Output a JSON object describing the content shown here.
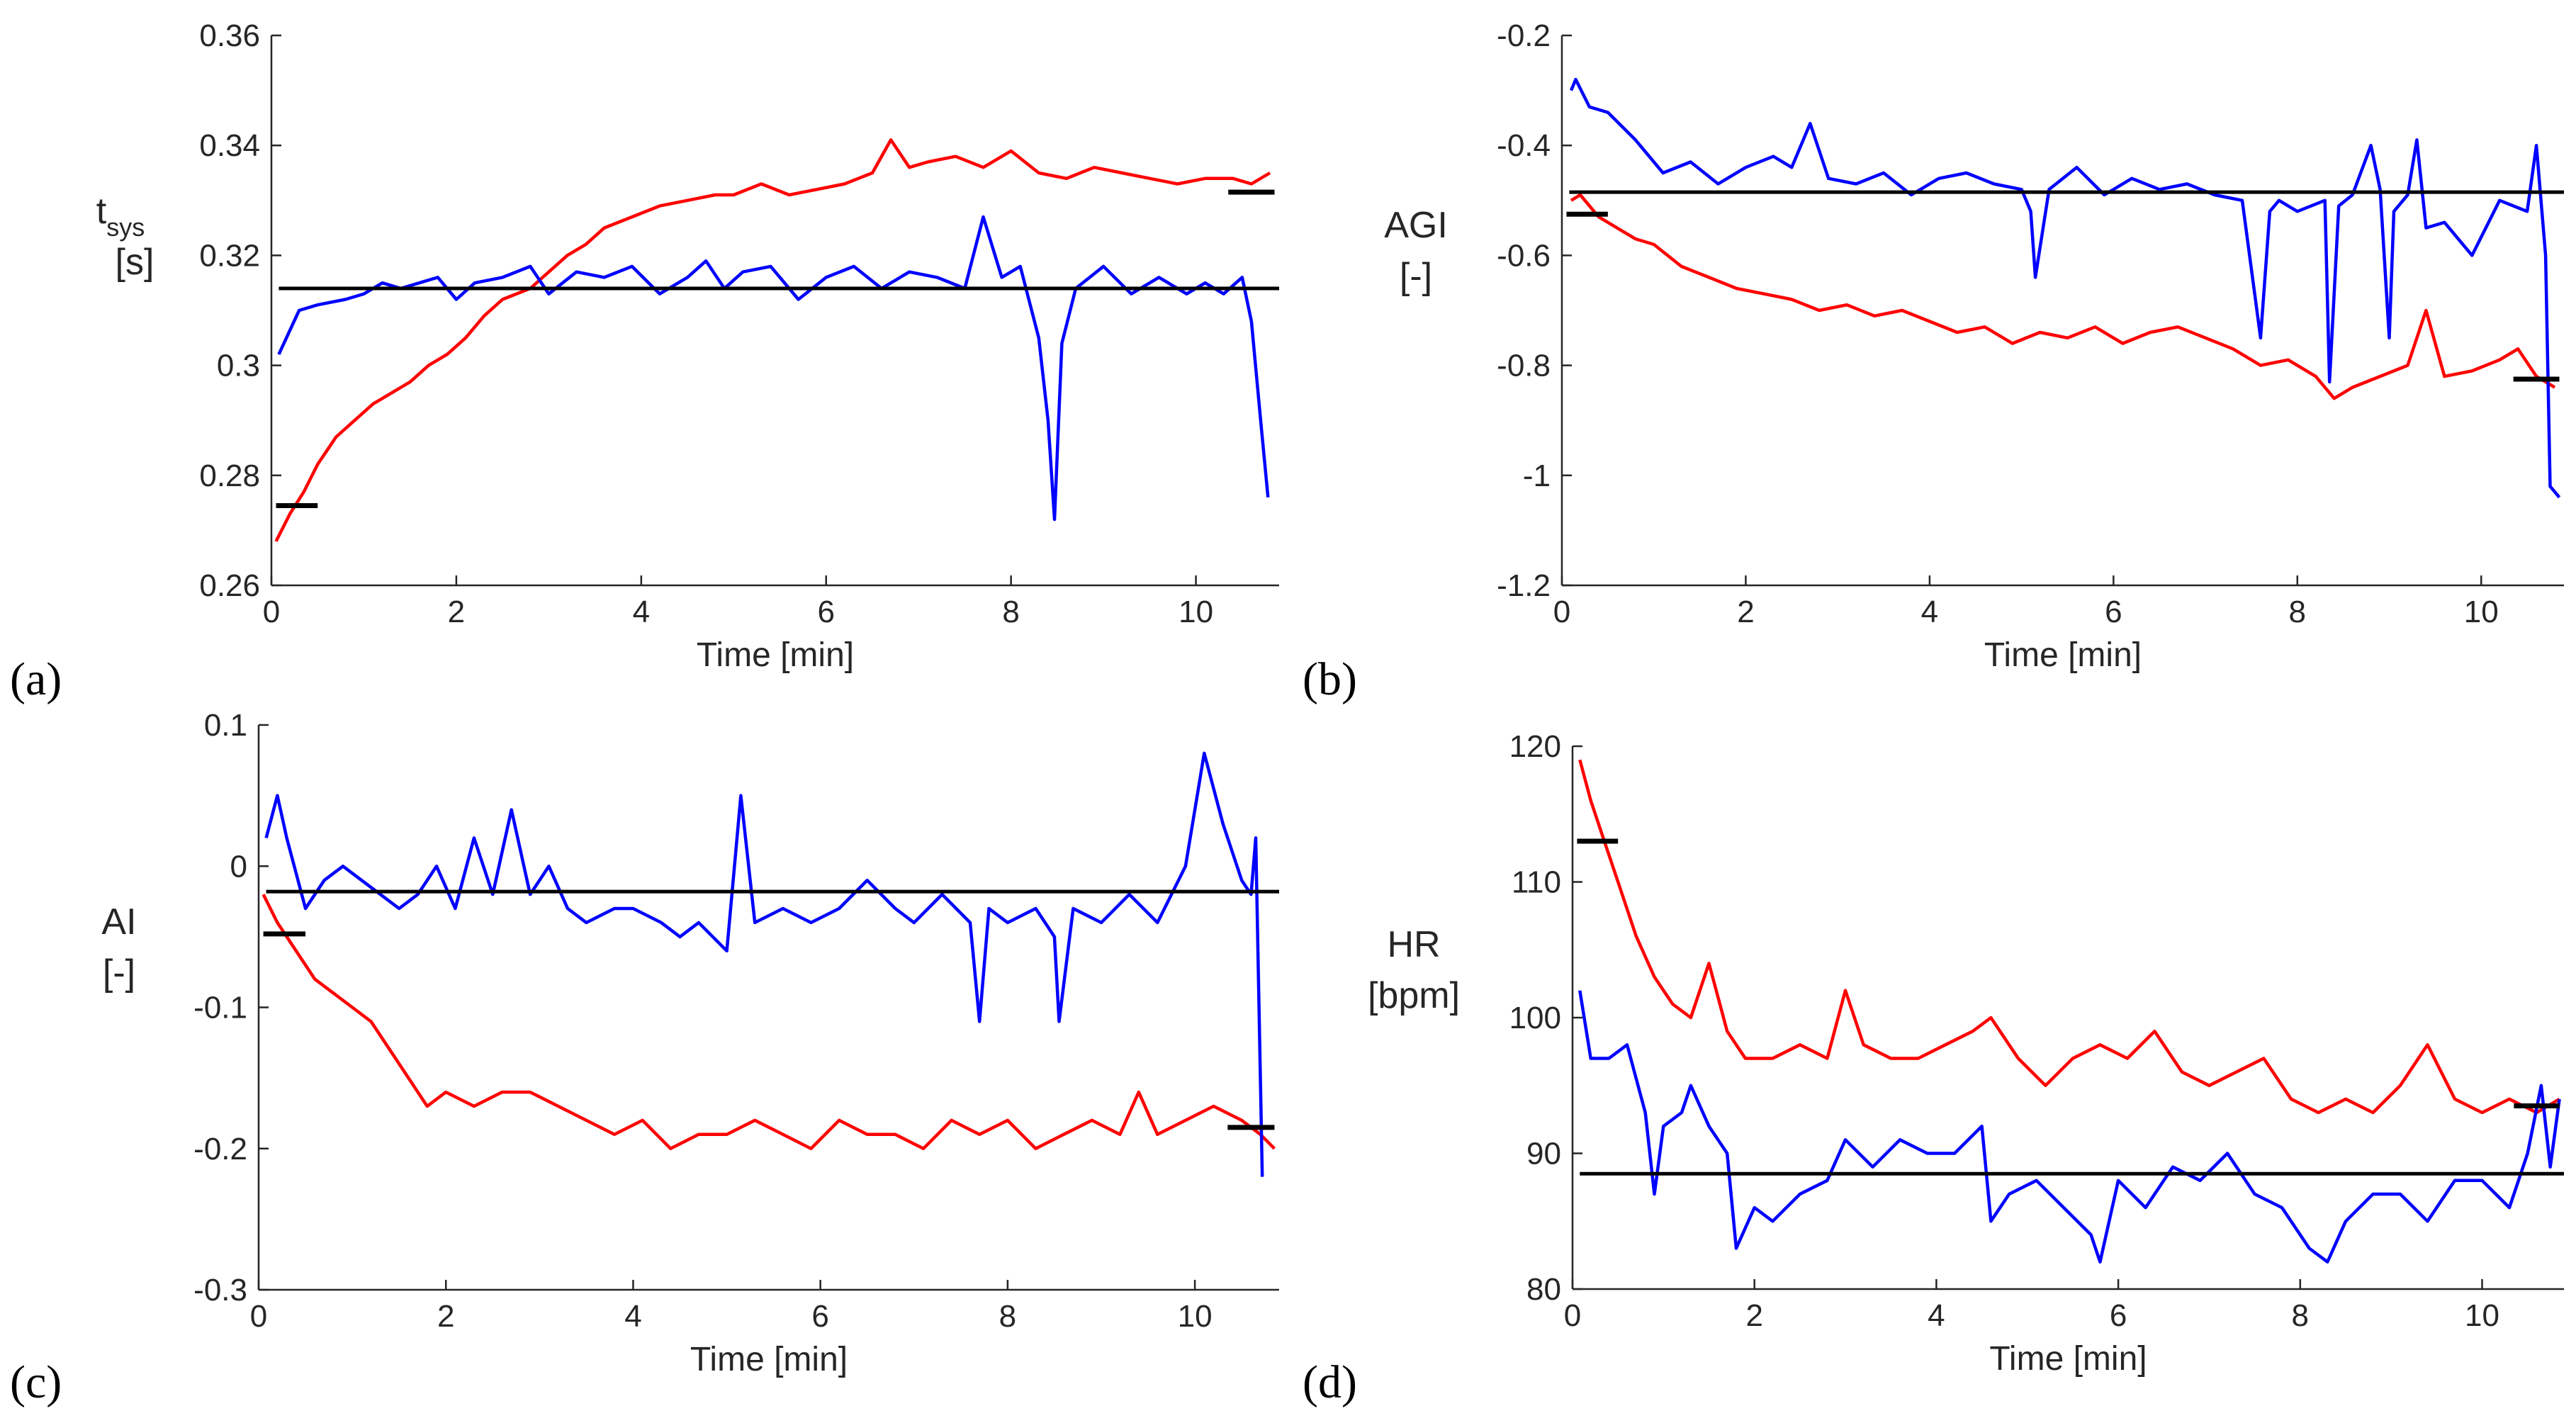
{
  "colors": {
    "red": "#ff0000",
    "blue": "#0000ff",
    "black": "#000000",
    "axis": "#262626"
  },
  "chart_data": [
    {
      "type": "line",
      "panel_label": "(a)",
      "xlabel": "Time [min]",
      "ylabel_lines": [
        "t",
        "[s]"
      ],
      "ylabel_sub": "sys",
      "xlim": [
        0,
        10.9
      ],
      "ylim": [
        0.26,
        0.36
      ],
      "xticks": [
        0,
        2,
        4,
        6,
        8,
        10
      ],
      "yticks": [
        0.26,
        0.28,
        0.3,
        0.32,
        0.34,
        0.36
      ],
      "ytick_labels": [
        "0.26",
        "0.28",
        "0.3",
        "0.32",
        "0.34",
        "0.36"
      ],
      "reference_lines": [
        {
          "name": "blue-mean",
          "y": 0.314,
          "x_start": 0.08,
          "x_end": 10.9
        },
        {
          "name": "red-start",
          "y": 0.2745,
          "x_start": 0.05,
          "x_end": 0.5
        },
        {
          "name": "red-end",
          "y": 0.3315,
          "x_start": 10.35,
          "x_end": 10.85
        }
      ],
      "series": [
        {
          "name": "red",
          "color": "red",
          "x": [
            0.05,
            0.2,
            0.35,
            0.5,
            0.7,
            0.9,
            1.1,
            1.3,
            1.5,
            1.7,
            1.9,
            2.1,
            2.3,
            2.5,
            2.8,
            3.0,
            3.2,
            3.4,
            3.6,
            3.9,
            4.2,
            4.5,
            4.8,
            5.0,
            5.3,
            5.6,
            5.9,
            6.2,
            6.5,
            6.7,
            6.9,
            7.1,
            7.4,
            7.7,
            8.0,
            8.3,
            8.6,
            8.9,
            9.2,
            9.5,
            9.8,
            10.1,
            10.4,
            10.6,
            10.8
          ],
          "y": [
            0.268,
            0.273,
            0.277,
            0.282,
            0.287,
            0.29,
            0.293,
            0.295,
            0.297,
            0.3,
            0.302,
            0.305,
            0.309,
            0.312,
            0.314,
            0.317,
            0.32,
            0.322,
            0.325,
            0.327,
            0.329,
            0.33,
            0.331,
            0.331,
            0.333,
            0.331,
            0.332,
            0.333,
            0.335,
            0.341,
            0.336,
            0.337,
            0.338,
            0.336,
            0.339,
            0.335,
            0.334,
            0.336,
            0.335,
            0.334,
            0.333,
            0.334,
            0.334,
            0.333,
            0.335
          ]
        },
        {
          "name": "blue",
          "color": "blue",
          "x": [
            0.08,
            0.3,
            0.5,
            0.8,
            1.0,
            1.2,
            1.4,
            1.6,
            1.8,
            2.0,
            2.2,
            2.5,
            2.8,
            3.0,
            3.3,
            3.6,
            3.9,
            4.2,
            4.5,
            4.7,
            4.9,
            5.1,
            5.4,
            5.7,
            6.0,
            6.3,
            6.6,
            6.9,
            7.2,
            7.5,
            7.7,
            7.9,
            8.1,
            8.3,
            8.4,
            8.47,
            8.55,
            8.7,
            9.0,
            9.3,
            9.6,
            9.9,
            10.1,
            10.3,
            10.5,
            10.6,
            10.7,
            10.78
          ],
          "y": [
            0.302,
            0.31,
            0.311,
            0.312,
            0.313,
            0.315,
            0.314,
            0.315,
            0.316,
            0.312,
            0.315,
            0.316,
            0.318,
            0.313,
            0.317,
            0.316,
            0.318,
            0.313,
            0.316,
            0.319,
            0.314,
            0.317,
            0.318,
            0.312,
            0.316,
            0.318,
            0.314,
            0.317,
            0.316,
            0.314,
            0.327,
            0.316,
            0.318,
            0.305,
            0.29,
            0.272,
            0.304,
            0.314,
            0.318,
            0.313,
            0.316,
            0.313,
            0.315,
            0.313,
            0.316,
            0.308,
            0.29,
            0.276
          ]
        }
      ]
    },
    {
      "type": "line",
      "panel_label": "(b)",
      "xlabel": "Time [min]",
      "ylabel_lines": [
        "AGI",
        "[-]"
      ],
      "xlim": [
        0,
        10.9
      ],
      "ylim": [
        -1.2,
        -0.2
      ],
      "xticks": [
        0,
        2,
        4,
        6,
        8,
        10
      ],
      "yticks": [
        -1.2,
        -1,
        -0.8,
        -0.6,
        -0.4,
        -0.2
      ],
      "ytick_labels": [
        "-1.2",
        "-1",
        "-0.8",
        "-0.6",
        "-0.4",
        "-0.2"
      ],
      "reference_lines": [
        {
          "name": "blue-mean",
          "y": -0.485,
          "x_start": 0.08,
          "x_end": 10.9
        },
        {
          "name": "red-start",
          "y": -0.525,
          "x_start": 0.05,
          "x_end": 0.5
        },
        {
          "name": "red-end",
          "y": -0.825,
          "x_start": 10.35,
          "x_end": 10.85
        }
      ],
      "series": [
        {
          "name": "red",
          "color": "red",
          "x": [
            0.1,
            0.2,
            0.4,
            0.6,
            0.8,
            1.0,
            1.3,
            1.6,
            1.9,
            2.2,
            2.5,
            2.8,
            3.1,
            3.4,
            3.7,
            4.0,
            4.3,
            4.6,
            4.9,
            5.2,
            5.5,
            5.8,
            6.1,
            6.4,
            6.7,
            7.0,
            7.3,
            7.6,
            7.9,
            8.2,
            8.4,
            8.6,
            8.9,
            9.2,
            9.4,
            9.6,
            9.9,
            10.2,
            10.4,
            10.6,
            10.8
          ],
          "y": [
            -0.5,
            -0.49,
            -0.53,
            -0.55,
            -0.57,
            -0.58,
            -0.62,
            -0.64,
            -0.66,
            -0.67,
            -0.68,
            -0.7,
            -0.69,
            -0.71,
            -0.7,
            -0.72,
            -0.74,
            -0.73,
            -0.76,
            -0.74,
            -0.75,
            -0.73,
            -0.76,
            -0.74,
            -0.73,
            -0.75,
            -0.77,
            -0.8,
            -0.79,
            -0.82,
            -0.86,
            -0.84,
            -0.82,
            -0.8,
            -0.7,
            -0.82,
            -0.81,
            -0.79,
            -0.77,
            -0.82,
            -0.84
          ]
        },
        {
          "name": "blue",
          "color": "blue",
          "x": [
            0.1,
            0.15,
            0.3,
            0.5,
            0.8,
            1.1,
            1.4,
            1.7,
            2.0,
            2.3,
            2.5,
            2.7,
            2.9,
            3.2,
            3.5,
            3.8,
            4.1,
            4.4,
            4.7,
            5.0,
            5.1,
            5.15,
            5.3,
            5.6,
            5.9,
            6.2,
            6.5,
            6.8,
            7.1,
            7.4,
            7.6,
            7.7,
            7.8,
            8.0,
            8.3,
            8.35,
            8.45,
            8.6,
            8.8,
            8.9,
            9.0,
            9.05,
            9.2,
            9.3,
            9.4,
            9.6,
            9.9,
            10.2,
            10.5,
            10.6,
            10.7,
            10.75,
            10.85
          ],
          "y": [
            -0.3,
            -0.28,
            -0.33,
            -0.34,
            -0.39,
            -0.45,
            -0.43,
            -0.47,
            -0.44,
            -0.42,
            -0.44,
            -0.36,
            -0.46,
            -0.47,
            -0.45,
            -0.49,
            -0.46,
            -0.45,
            -0.47,
            -0.48,
            -0.52,
            -0.64,
            -0.48,
            -0.44,
            -0.49,
            -0.46,
            -0.48,
            -0.47,
            -0.49,
            -0.5,
            -0.75,
            -0.52,
            -0.5,
            -0.52,
            -0.5,
            -0.83,
            -0.51,
            -0.49,
            -0.4,
            -0.48,
            -0.75,
            -0.52,
            -0.49,
            -0.39,
            -0.55,
            -0.54,
            -0.6,
            -0.5,
            -0.52,
            -0.4,
            -0.6,
            -1.02,
            -1.04
          ]
        }
      ]
    },
    {
      "type": "line",
      "panel_label": "(c)",
      "xlabel": "Time [min]",
      "ylabel_lines": [
        "AI",
        "[-]"
      ],
      "xlim": [
        0,
        10.9
      ],
      "ylim": [
        -0.3,
        0.1
      ],
      "xticks": [
        0,
        2,
        4,
        6,
        8,
        10
      ],
      "yticks": [
        -0.3,
        -0.2,
        -0.1,
        0,
        0.1
      ],
      "ytick_labels": [
        "-0.3",
        "-0.2",
        "-0.1",
        "0",
        "0.1"
      ],
      "reference_lines": [
        {
          "name": "blue-mean",
          "y": -0.018,
          "x_start": 0.08,
          "x_end": 10.9
        },
        {
          "name": "red-start",
          "y": -0.048,
          "x_start": 0.05,
          "x_end": 0.5
        },
        {
          "name": "red-end",
          "y": -0.185,
          "x_start": 10.35,
          "x_end": 10.85
        }
      ],
      "series": [
        {
          "name": "red",
          "color": "red",
          "x": [
            0.05,
            0.2,
            0.4,
            0.6,
            0.8,
            1.0,
            1.2,
            1.4,
            1.6,
            1.8,
            2.0,
            2.3,
            2.6,
            2.9,
            3.2,
            3.5,
            3.8,
            4.1,
            4.4,
            4.7,
            5.0,
            5.3,
            5.6,
            5.9,
            6.2,
            6.5,
            6.8,
            7.1,
            7.4,
            7.7,
            8.0,
            8.3,
            8.6,
            8.9,
            9.2,
            9.4,
            9.6,
            9.9,
            10.2,
            10.5,
            10.7,
            10.85
          ],
          "y": [
            -0.02,
            -0.04,
            -0.06,
            -0.08,
            -0.09,
            -0.1,
            -0.11,
            -0.13,
            -0.15,
            -0.17,
            -0.16,
            -0.17,
            -0.16,
            -0.16,
            -0.17,
            -0.18,
            -0.19,
            -0.18,
            -0.2,
            -0.19,
            -0.19,
            -0.18,
            -0.19,
            -0.2,
            -0.18,
            -0.19,
            -0.19,
            -0.2,
            -0.18,
            -0.19,
            -0.18,
            -0.2,
            -0.19,
            -0.18,
            -0.19,
            -0.16,
            -0.19,
            -0.18,
            -0.17,
            -0.18,
            -0.19,
            -0.2
          ]
        },
        {
          "name": "blue",
          "color": "blue",
          "x": [
            0.08,
            0.2,
            0.3,
            0.5,
            0.7,
            0.9,
            1.1,
            1.3,
            1.5,
            1.7,
            1.9,
            2.1,
            2.3,
            2.5,
            2.7,
            2.9,
            3.1,
            3.3,
            3.5,
            3.8,
            4.0,
            4.3,
            4.5,
            4.7,
            5.0,
            5.15,
            5.3,
            5.6,
            5.9,
            6.2,
            6.5,
            6.8,
            7.0,
            7.3,
            7.6,
            7.7,
            7.8,
            8.0,
            8.3,
            8.5,
            8.55,
            8.7,
            9.0,
            9.3,
            9.6,
            9.9,
            10.1,
            10.3,
            10.5,
            10.6,
            10.65,
            10.72
          ],
          "y": [
            0.02,
            0.05,
            0.02,
            -0.03,
            -0.01,
            0.0,
            -0.01,
            -0.02,
            -0.03,
            -0.02,
            0.0,
            -0.03,
            0.02,
            -0.02,
            0.04,
            -0.02,
            0.0,
            -0.03,
            -0.04,
            -0.03,
            -0.03,
            -0.04,
            -0.05,
            -0.04,
            -0.06,
            0.05,
            -0.04,
            -0.03,
            -0.04,
            -0.03,
            -0.01,
            -0.03,
            -0.04,
            -0.02,
            -0.04,
            -0.11,
            -0.03,
            -0.04,
            -0.03,
            -0.05,
            -0.11,
            -0.03,
            -0.04,
            -0.02,
            -0.04,
            0.0,
            0.08,
            0.03,
            -0.01,
            -0.02,
            0.02,
            -0.22
          ]
        }
      ]
    },
    {
      "type": "line",
      "panel_label": "(d)",
      "xlabel": "Time [min]",
      "ylabel_lines": [
        "HR",
        "[bpm]"
      ],
      "xlim": [
        0,
        10.9
      ],
      "ylim": [
        80,
        120
      ],
      "xticks": [
        0,
        2,
        4,
        6,
        8,
        10
      ],
      "yticks": [
        80,
        90,
        100,
        110,
        120
      ],
      "ytick_labels": [
        "80",
        "90",
        "100",
        "110",
        "120"
      ],
      "reference_lines": [
        {
          "name": "blue-mean",
          "y": 88.5,
          "x_start": 0.08,
          "x_end": 10.9
        },
        {
          "name": "red-start",
          "y": 113,
          "x_start": 0.05,
          "x_end": 0.5
        },
        {
          "name": "red-end",
          "y": 93.5,
          "x_start": 10.35,
          "x_end": 10.85
        }
      ],
      "series": [
        {
          "name": "red",
          "color": "red",
          "x": [
            0.08,
            0.2,
            0.35,
            0.5,
            0.7,
            0.9,
            1.1,
            1.3,
            1.5,
            1.7,
            1.9,
            2.2,
            2.5,
            2.8,
            3.0,
            3.2,
            3.5,
            3.8,
            4.1,
            4.4,
            4.6,
            4.9,
            5.2,
            5.5,
            5.8,
            6.1,
            6.4,
            6.7,
            7.0,
            7.3,
            7.6,
            7.9,
            8.2,
            8.5,
            8.8,
            9.1,
            9.4,
            9.7,
            10.0,
            10.3,
            10.6,
            10.85
          ],
          "y": [
            119,
            116,
            113,
            110,
            106,
            103,
            101,
            100,
            104,
            99,
            97,
            97,
            98,
            97,
            102,
            98,
            97,
            97,
            98,
            99,
            100,
            97,
            95,
            97,
            98,
            97,
            99,
            96,
            95,
            96,
            97,
            94,
            93,
            94,
            93,
            95,
            98,
            94,
            93,
            94,
            93,
            94
          ]
        },
        {
          "name": "blue",
          "color": "blue",
          "x": [
            0.08,
            0.2,
            0.4,
            0.6,
            0.8,
            0.9,
            1.0,
            1.2,
            1.3,
            1.5,
            1.7,
            1.8,
            2.0,
            2.2,
            2.5,
            2.8,
            3.0,
            3.3,
            3.6,
            3.9,
            4.2,
            4.5,
            4.6,
            4.8,
            5.1,
            5.4,
            5.7,
            5.8,
            6.0,
            6.3,
            6.6,
            6.9,
            7.2,
            7.5,
            7.8,
            8.1,
            8.3,
            8.5,
            8.8,
            9.1,
            9.4,
            9.7,
            10.0,
            10.3,
            10.5,
            10.65,
            10.75,
            10.85
          ],
          "y": [
            102,
            97,
            97,
            98,
            93,
            87,
            92,
            93,
            95,
            92,
            90,
            83,
            86,
            85,
            87,
            88,
            91,
            89,
            91,
            90,
            90,
            92,
            85,
            87,
            88,
            86,
            84,
            82,
            88,
            86,
            89,
            88,
            90,
            87,
            86,
            83,
            82,
            85,
            87,
            87,
            85,
            88,
            88,
            86,
            90,
            95,
            89,
            94
          ]
        }
      ]
    }
  ]
}
